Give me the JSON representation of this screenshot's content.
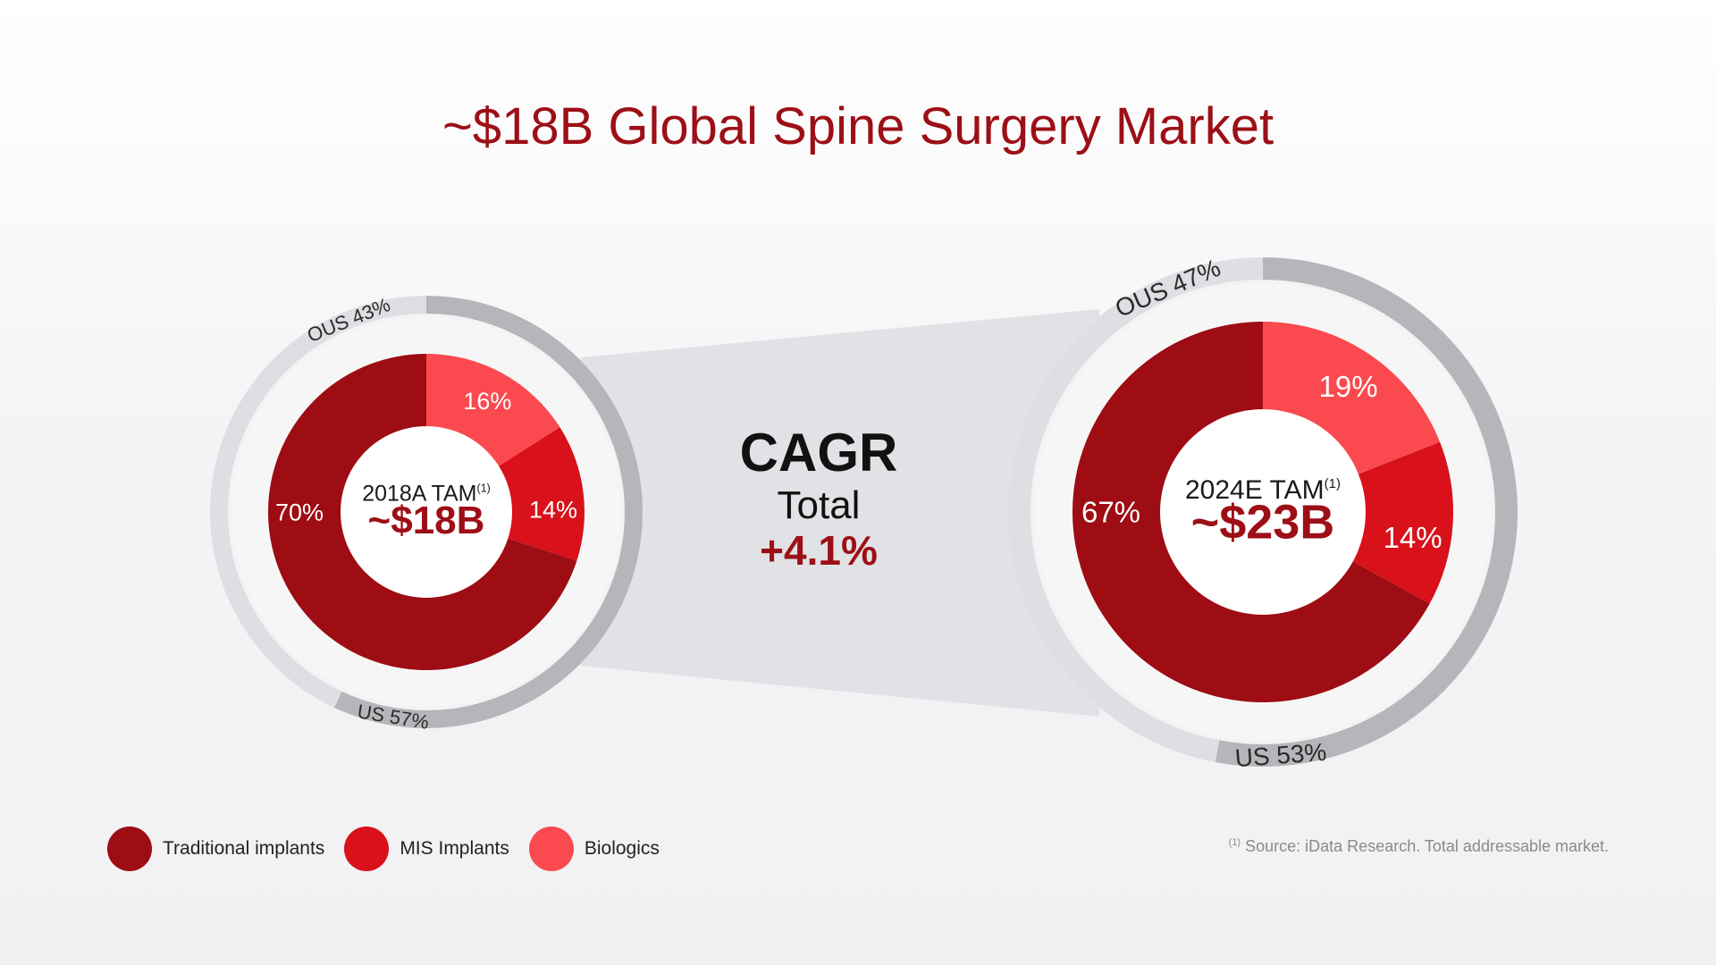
{
  "title": "~$18B Global Spine Surgery Market",
  "colors": {
    "traditional": "#9e0c14",
    "mis": "#d8111a",
    "biologics": "#fb4a4f",
    "accent": "#9d0f16",
    "ring_dark": "#b5b6b9",
    "ring_light": "#dedfe2"
  },
  "chart_data": {
    "type": "pie",
    "title": "~$18B Global Spine Surgery Market",
    "charts": [
      {
        "id": "2018",
        "center_label": "2018A TAM",
        "center_sup": "(1)",
        "center_value": "~$18B",
        "segments": [
          {
            "name": "Biologics",
            "value": 16,
            "label": "16%"
          },
          {
            "name": "MIS Implants",
            "value": 14,
            "label": "14%"
          },
          {
            "name": "Traditional implants",
            "value": 70,
            "label": "70%"
          }
        ],
        "geography": [
          {
            "name": "US",
            "value": 57,
            "label": "US 57%"
          },
          {
            "name": "OUS",
            "value": 43,
            "label": "OUS 43%"
          }
        ]
      },
      {
        "id": "2024",
        "center_label": "2024E TAM",
        "center_sup": "(1)",
        "center_value": "~$23B",
        "segments": [
          {
            "name": "Biologics",
            "value": 19,
            "label": "19%"
          },
          {
            "name": "MIS Implants",
            "value": 14,
            "label": "14%"
          },
          {
            "name": "Traditional implants",
            "value": 67,
            "label": "67%"
          }
        ],
        "geography": [
          {
            "name": "US",
            "value": 53,
            "label": "US 53%"
          },
          {
            "name": "OUS",
            "value": 47,
            "label": "OUS 47%"
          }
        ]
      }
    ],
    "cagr": {
      "heading": "CAGR",
      "sub": "Total",
      "value": "+4.1%"
    },
    "legend": [
      {
        "name": "Traditional implants",
        "color": "#9e0c14"
      },
      {
        "name": "MIS Implants",
        "color": "#d8111a"
      },
      {
        "name": "Biologics",
        "color": "#fb4a4f"
      }
    ]
  },
  "source": {
    "sup": "(1)",
    "text": "Source: iData Research. Total addressable market."
  }
}
